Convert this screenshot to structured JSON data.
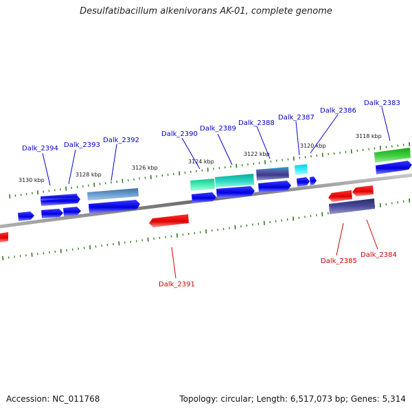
{
  "title": "Desulfatibacillum alkenivorans AK-01, complete genome",
  "accession": "Accession: NC_011768",
  "summary": "Topology: circular; Length: 6,517,073 bp; Genes: 5,314",
  "scale_labels": [
    "3130 kbp",
    "3128 kbp",
    "3126 kbp",
    "3124 kbp",
    "3122 kbp",
    "3120 kbp",
    "3118 kbp"
  ],
  "gene_labels": [
    "Dalk_2394",
    "Dalk_2393",
    "Dalk_2392",
    "Dalk_2390",
    "Dalk_2389",
    "Dalk_2388",
    "Dalk_2387",
    "Dalk_2386",
    "Dalk_2383",
    "Dalk_2391",
    "Dalk_2385",
    "Dalk_2384"
  ],
  "colors": {
    "forward_label": "#0000cc",
    "reverse_label": "#cc0000",
    "ticks": "#2a7a1a",
    "backbone": "#8a8a8a"
  }
}
